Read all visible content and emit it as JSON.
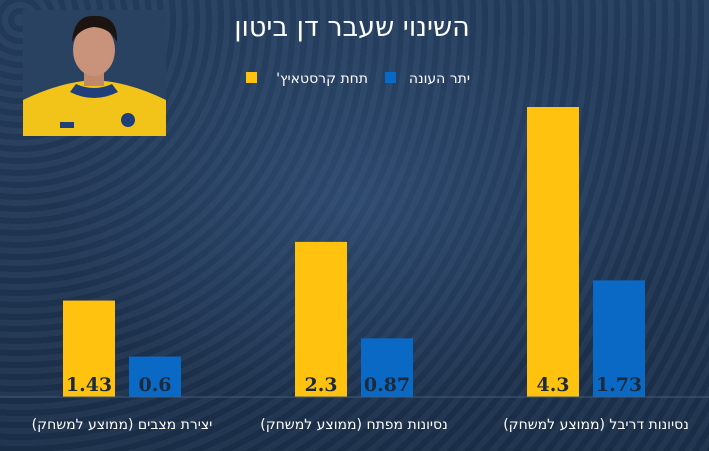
{
  "chart_data": {
    "type": "bar",
    "title": "השינוי שעבר דן ביטון",
    "categories": [
      "נסיונות דריבל (ממוצע למשחק)",
      "נסיונות מפתח (ממוצע למשחק)",
      "יצירת מצבים (ממוצע למשחק)"
    ],
    "value_labels": [
      [
        "4.3",
        "2.3",
        "1.43"
      ],
      [
        "1.73",
        "0.87",
        "0.6"
      ]
    ],
    "series": [
      {
        "name": "תחת קרסטאיץ'",
        "color": "#ffc20e",
        "values": [
          4.3,
          2.3,
          1.43
        ]
      },
      {
        "name": "יתר העונה",
        "color": "#0a69c4",
        "values": [
          1.73,
          0.87,
          0.6
        ]
      }
    ],
    "ylim": [
      0,
      4.3
    ],
    "grid": false,
    "legend_position": "top-center",
    "xlabel": "",
    "ylabel": ""
  }
}
